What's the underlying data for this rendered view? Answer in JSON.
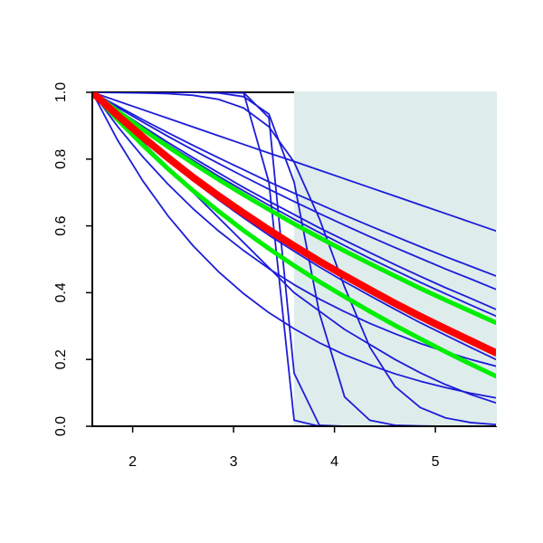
{
  "chart_data": {
    "type": "line",
    "x": [
      1.6,
      1.85,
      2.1,
      2.35,
      2.6,
      2.85,
      3.1,
      3.35,
      3.6,
      3.85,
      4.1,
      4.35,
      4.6,
      4.85,
      5.1,
      5.35,
      5.6
    ],
    "xlim": [
      1.6,
      5.6
    ],
    "ylim": [
      0,
      1
    ],
    "xticks": [
      2,
      3,
      4,
      5
    ],
    "yticks": [
      {
        "value": 0,
        "label": "0.0"
      },
      {
        "value": 0.2,
        "label": "0.2"
      },
      {
        "value": 0.4,
        "label": "0.4"
      },
      {
        "value": 0.6,
        "label": "0.6"
      },
      {
        "value": 0.8,
        "label": "0.8"
      },
      {
        "value": 1,
        "label": "1.0"
      }
    ],
    "grid": false,
    "shaded_region": {
      "xlim": [
        3.6,
        5.6
      ],
      "color": "#dfecec"
    },
    "series": [
      {
        "color": "#1c1cd9",
        "linewidth": 1.8,
        "values": [
          1,
          0.974,
          0.948,
          0.922,
          0.896,
          0.87,
          0.844,
          0.818,
          0.793,
          0.767,
          0.741,
          0.715,
          0.689,
          0.663,
          0.637,
          0.611,
          0.585
        ]
      },
      {
        "color": "#1c1cd9",
        "linewidth": 1.8,
        "values": [
          1,
          0.959,
          0.918,
          0.879,
          0.841,
          0.804,
          0.768,
          0.732,
          0.698,
          0.665,
          0.632,
          0.6,
          0.569,
          0.538,
          0.508,
          0.479,
          0.45
        ]
      },
      {
        "color": "#1c1cd9",
        "linewidth": 1.8,
        "values": [
          1,
          0.955,
          0.911,
          0.868,
          0.827,
          0.787,
          0.748,
          0.71,
          0.673,
          0.637,
          0.602,
          0.568,
          0.535,
          0.503,
          0.471,
          0.441,
          0.41
        ]
      },
      {
        "color": "#1c1cd9",
        "linewidth": 1.8,
        "values": [
          1,
          0.948,
          0.898,
          0.85,
          0.804,
          0.759,
          0.715,
          0.674,
          0.634,
          0.594,
          0.557,
          0.52,
          0.484,
          0.449,
          0.415,
          0.383,
          0.35
        ]
      },
      {
        "color": "#1c1cd9",
        "linewidth": 1.8,
        "values": [
          1,
          0.946,
          0.894,
          0.843,
          0.796,
          0.749,
          0.705,
          0.662,
          0.62,
          0.58,
          0.541,
          0.503,
          0.467,
          0.431,
          0.397,
          0.363,
          0.33
        ]
      },
      {
        "color": "#1c1cd9",
        "linewidth": 1.8,
        "values": [
          1,
          0.927,
          0.859,
          0.795,
          0.735,
          0.678,
          0.624,
          0.572,
          0.524,
          0.477,
          0.433,
          0.391,
          0.35,
          0.31,
          0.273,
          0.236,
          0.2
        ]
      },
      {
        "color": "#1c1cd9",
        "linewidth": 1.8,
        "values": [
          1,
          0.898,
          0.807,
          0.725,
          0.651,
          0.585,
          0.526,
          0.472,
          0.424,
          0.381,
          0.343,
          0.308,
          0.277,
          0.248,
          0.223,
          0.2,
          0.18
        ]
      },
      {
        "color": "#1c1cd9",
        "linewidth": 1.8,
        "values": [
          1,
          0.857,
          0.735,
          0.63,
          0.54,
          0.463,
          0.397,
          0.34,
          0.292,
          0.25,
          0.214,
          0.184,
          0.157,
          0.135,
          0.116,
          0.099,
          0.085
        ]
      },
      {
        "color": "#1c1cd9",
        "linewidth": 1.8,
        "values": [
          1,
          0.925,
          0.85,
          0.775,
          0.7,
          0.625,
          0.55,
          0.475,
          0.4,
          0.345,
          0.29,
          0.245,
          0.2,
          0.16,
          0.125,
          0.095,
          0.07
        ]
      },
      {
        "color": "#1c1cd9",
        "linewidth": 1.8,
        "values": [
          1,
          1,
          1,
          1,
          1,
          1,
          0.998,
          0.731,
          0.018,
          0,
          0,
          0,
          0,
          0,
          0,
          0,
          0
        ]
      },
      {
        "color": "#1c1cd9",
        "linewidth": 1.8,
        "values": [
          1,
          1,
          1,
          1,
          1,
          1,
          0.999,
          0.924,
          0.159,
          0.003,
          0,
          0,
          0,
          0,
          0,
          0,
          0
        ]
      },
      {
        "color": "#1c1cd9",
        "linewidth": 1.8,
        "values": [
          1,
          1,
          1,
          1,
          1,
          0.998,
          0.987,
          0.935,
          0.731,
          0.339,
          0.088,
          0.018,
          0.003,
          0.001,
          0,
          0,
          0
        ]
      },
      {
        "color": "#1c1cd9",
        "linewidth": 1.8,
        "values": [
          1,
          0.999,
          0.998,
          0.996,
          0.991,
          0.979,
          0.953,
          0.897,
          0.791,
          0.622,
          0.417,
          0.237,
          0.119,
          0.056,
          0.025,
          0.011,
          0.005
        ]
      },
      {
        "color": "#00ee00",
        "linewidth": 5,
        "values": [
          1,
          0.944,
          0.889,
          0.837,
          0.787,
          0.739,
          0.693,
          0.649,
          0.606,
          0.565,
          0.525,
          0.487,
          0.45,
          0.413,
          0.378,
          0.344,
          0.31
        ]
      },
      {
        "color": "#00ee00",
        "linewidth": 5,
        "values": [
          1,
          0.918,
          0.842,
          0.771,
          0.705,
          0.644,
          0.586,
          0.532,
          0.481,
          0.433,
          0.388,
          0.344,
          0.302,
          0.262,
          0.223,
          0.186,
          0.15
        ]
      },
      {
        "color": "#ff0000",
        "linewidth": 8,
        "values": [
          1,
          0.931,
          0.866,
          0.804,
          0.745,
          0.69,
          0.638,
          0.588,
          0.54,
          0.494,
          0.451,
          0.409,
          0.368,
          0.329,
          0.292,
          0.256,
          0.22
        ]
      }
    ]
  }
}
